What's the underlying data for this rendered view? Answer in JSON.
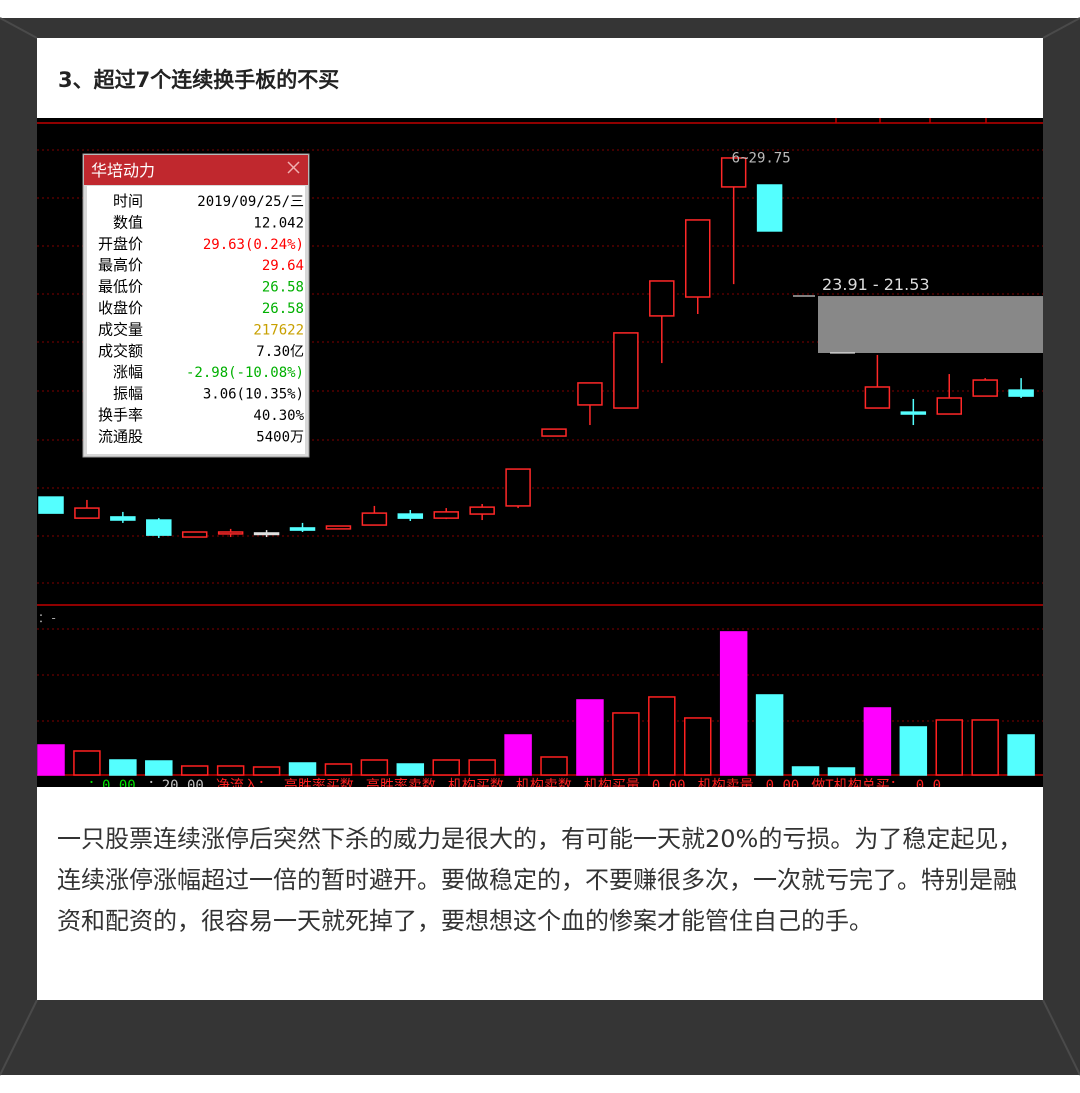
{
  "header": {
    "title": "3、超过7个连续换手板的不买"
  },
  "chart_data": {
    "type": "candlestick",
    "open": [
      15.51,
      14.63,
      14.68,
      14.55,
      13.84,
      13.97,
      14.01,
      14.22,
      14.18,
      14.34,
      14.8,
      14.63,
      14.8,
      15.14,
      18.06,
      19.36,
      19.23,
      23.08,
      23.87,
      28.47,
      28.55,
      null,
      null,
      19.23,
      19.06,
      18.98,
      19.73,
      19.98
    ],
    "high": [
      15.51,
      15.39,
      14.89,
      14.63,
      14.05,
      14.18,
      14.13,
      14.43,
      14.3,
      15.14,
      14.97,
      15.05,
      15.22,
      16.68,
      18.35,
      20.28,
      22.37,
      24.54,
      27.09,
      29.75,
      28.55,
      null,
      null,
      21.45,
      19.61,
      20.65,
      20.48,
      20.48
    ],
    "low": [
      14.84,
      14.63,
      14.43,
      13.8,
      13.84,
      13.84,
      13.84,
      14.05,
      14.18,
      14.34,
      14.51,
      14.59,
      14.55,
      15.05,
      18.06,
      18.52,
      19.23,
      21.11,
      23.16,
      24.41,
      26.63,
      null,
      null,
      19.23,
      18.52,
      18.98,
      19.73,
      19.65
    ],
    "close": [
      14.84,
      15.05,
      14.55,
      13.92,
      14.05,
      14.05,
      14.01,
      14.13,
      14.3,
      14.84,
      14.63,
      14.89,
      15.09,
      16.68,
      18.35,
      20.28,
      22.37,
      24.54,
      27.09,
      29.68,
      26.63,
      null,
      null,
      20.11,
      18.98,
      19.65,
      20.4,
      19.73
    ],
    "ylim": [
      11,
      31.35
    ],
    "high_label": "6~29.75",
    "gap": [
      23.91,
      21.53
    ],
    "gap_label": "23.91 - 21.53",
    "volume": {
      "values": [
        83700,
        66960,
        41850,
        39060,
        25110,
        25110,
        22320,
        33480,
        30690,
        41850,
        30690,
        41850,
        41850,
        111600,
        50220,
        209250,
        172980,
        217620,
        159030,
        398970,
        223200,
        22320,
        19530,
        186930,
        133920,
        153450,
        153450,
        111600
      ],
      "colors": [
        "#ff00ff",
        "#ff2020",
        "#54ffff",
        "#54ffff",
        "#ff2020",
        "#ff2020",
        "#ff2020",
        "#54ffff",
        "#ff2020",
        "#ff2020",
        "#54ffff",
        "#ff2020",
        "#ff2020",
        "#ff00ff",
        "#ff2020",
        "#ff00ff",
        "#ff2020",
        "#ff2020",
        "#ff2020",
        "#ff00ff",
        "#54ffff",
        "#54ffff",
        "#54ffff",
        "#ff00ff",
        "#54ffff",
        "#ff2020",
        "#ff2020",
        "#54ffff"
      ],
      "ylim": [
        0,
        474000
      ]
    },
    "volume_label": "：-",
    "indicator_texts": [
      {
        "text": "：0.00",
        "color": "#00e000"
      },
      {
        "text": "：20.00",
        "color": "#c0c0c0"
      },
      {
        "text": "净流入：",
        "color": "#ff2020"
      },
      {
        "text": "高胜率买数",
        "color": "#ff2020"
      },
      {
        "text": "高胜率卖数",
        "color": "#ff2020"
      },
      {
        "text": "机构买数",
        "color": "#ff2020"
      },
      {
        "text": "机构卖数",
        "color": "#ff2020"
      },
      {
        "text": "机构买量",
        "color": "#ff2020"
      },
      {
        "text": "0.00",
        "color": "#ff2020"
      },
      {
        "text": "机构卖量",
        "color": "#ff2020"
      },
      {
        "text": "0.00",
        "color": "#ff2020"
      },
      {
        "text": "做T机构总买：",
        "color": "#ff2020"
      },
      {
        "text": "0.0",
        "color": "#ff2020"
      }
    ]
  },
  "info_panel": {
    "title": "华培动力",
    "rows": [
      {
        "label": "时间",
        "value": "2019/09/25/三",
        "color": "#000000"
      },
      {
        "label": "数值",
        "value": "12.042",
        "color": "#000000"
      },
      {
        "label": "开盘价",
        "value": "29.63(0.24%)",
        "color": "#ff0000"
      },
      {
        "label": "最高价",
        "value": "29.64",
        "color": "#ff0000"
      },
      {
        "label": "最低价",
        "value": "26.58",
        "color": "#00b000"
      },
      {
        "label": "收盘价",
        "value": "26.58",
        "color": "#00b000"
      },
      {
        "label": "成交量",
        "value": "217622",
        "color": "#c8a000"
      },
      {
        "label": "成交额",
        "value": "7.30亿",
        "color": "#000000"
      },
      {
        "label": "涨幅",
        "value": "-2.98(-10.08%)",
        "color": "#00b000"
      },
      {
        "label": "振幅",
        "value": "3.06(10.35%)",
        "color": "#000000"
      },
      {
        "label": "换手率",
        "value": "40.30%",
        "color": "#000000"
      },
      {
        "label": "流通股",
        "value": "5400万",
        "color": "#000000"
      }
    ]
  },
  "article": {
    "paragraph": "一只股票连续涨停后突然下杀的威力是很大的，有可能一天就20%的亏损。为了稳定起见，连续涨停涨幅超过一倍的暂时避开。要做稳定的，不要赚很多次，一次就亏完了。特别是融资和配资的，很容易一天就死掉了，要想想这个血的惨案才能管住自己的手。"
  }
}
